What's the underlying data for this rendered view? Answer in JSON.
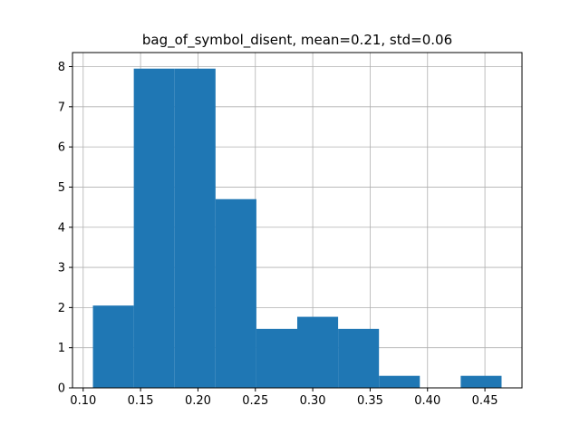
{
  "chart_data": {
    "type": "bar",
    "title": "bag_of_symbol_disent, mean=0.21, std=0.06",
    "xlabel": "",
    "ylabel": "",
    "bins": [
      {
        "x0": 0.1085,
        "x1": 0.1441,
        "count": 2.05
      },
      {
        "x0": 0.1441,
        "x1": 0.1797,
        "count": 7.95
      },
      {
        "x0": 0.1797,
        "x1": 0.2153,
        "count": 7.95
      },
      {
        "x0": 0.2153,
        "x1": 0.2509,
        "count": 4.7
      },
      {
        "x0": 0.2509,
        "x1": 0.2865,
        "count": 1.47
      },
      {
        "x0": 0.2865,
        "x1": 0.3221,
        "count": 1.77
      },
      {
        "x0": 0.3221,
        "x1": 0.3577,
        "count": 1.47
      },
      {
        "x0": 0.3577,
        "x1": 0.3933,
        "count": 0.3
      },
      {
        "x0": 0.3933,
        "x1": 0.4289,
        "count": 0
      },
      {
        "x0": 0.4289,
        "x1": 0.4645,
        "count": 0.3
      }
    ],
    "xlim": [
      0.0907,
      0.4823
    ],
    "ylim": [
      0,
      8.35
    ],
    "xticks": [
      0.1,
      0.15,
      0.2,
      0.25,
      0.3,
      0.35,
      0.4,
      0.45
    ],
    "xtick_labels": [
      "0.10",
      "0.15",
      "0.20",
      "0.25",
      "0.30",
      "0.35",
      "0.40",
      "0.45"
    ],
    "yticks": [
      0,
      1,
      2,
      3,
      4,
      5,
      6,
      7,
      8
    ],
    "ytick_labels": [
      "0",
      "1",
      "2",
      "3",
      "4",
      "5",
      "6",
      "7",
      "8"
    ],
    "grid": true,
    "bar_color": "#1f77b4",
    "grid_color": "#b0b0b0"
  }
}
